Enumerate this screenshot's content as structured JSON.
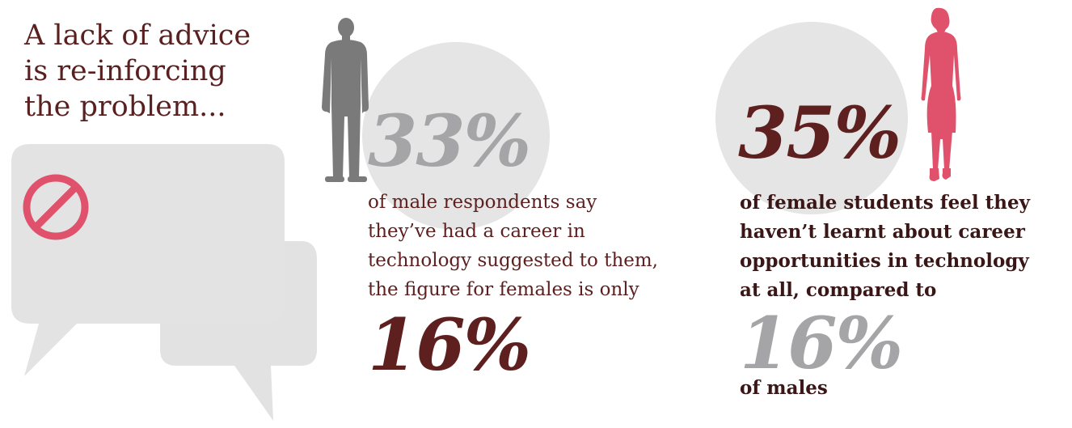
{
  "headline": {
    "lines": [
      "A lack of advice",
      "is re-inforcing",
      "the problem..."
    ]
  },
  "colors": {
    "dark_red": "#5e1f1f",
    "grey_stat": "#a5a5a7",
    "bubble_grey": "#e3e3e3",
    "circle_grey": "#e5e5e5",
    "male_figure": "#7a7a7a",
    "female_figure": "#e0526c",
    "no_sign": "#e0526c"
  },
  "icons": {
    "no_sign": "no-entry-icon",
    "male": "man-silhouette-icon",
    "female": "woman-silhouette-icon",
    "bubbles": "speech-bubbles-icon"
  },
  "male_stat": {
    "value": "33%",
    "description_lines": [
      "of male respondents say",
      "they’ve had a career in",
      "technology suggested to them,",
      "the figure for females is only"
    ],
    "comparison_value": "16%"
  },
  "female_stat": {
    "value": "35%",
    "description_lines": [
      "of female students feel they",
      "haven’t learnt about career",
      "opportunities in technology",
      "at all, compared to"
    ],
    "comparison_value": "16%",
    "comparison_suffix": "of males"
  }
}
